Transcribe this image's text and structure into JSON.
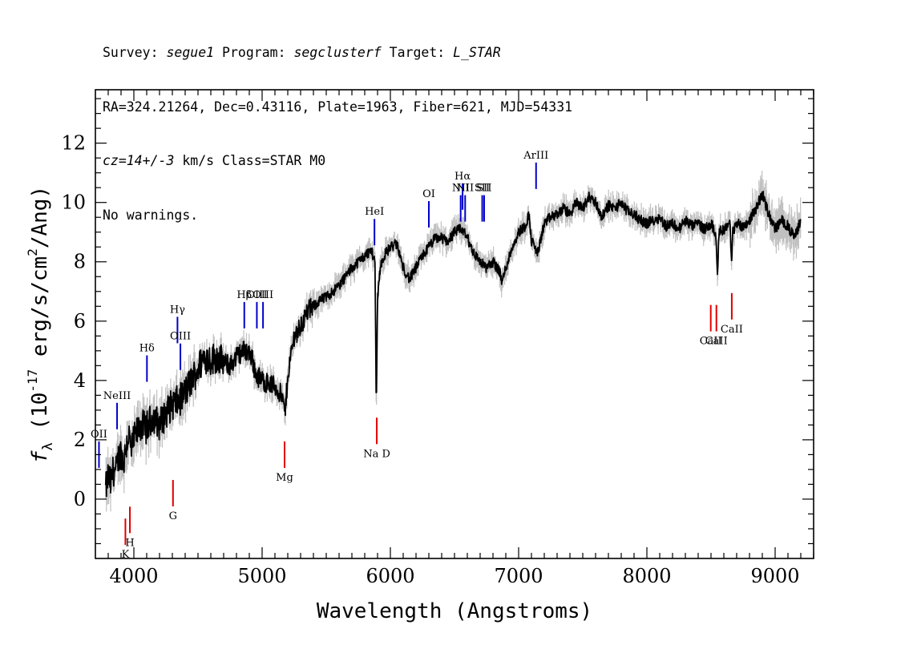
{
  "header": {
    "line1": [
      {
        "t": "Survey: ",
        "i": false
      },
      {
        "t": "segue1",
        "i": true
      },
      {
        "t": " Program: ",
        "i": false
      },
      {
        "t": "segclusterf",
        "i": true
      },
      {
        "t": " Target: ",
        "i": false
      },
      {
        "t": "L_STAR",
        "i": true
      }
    ],
    "line2": [
      {
        "t": "RA=324.21264, Dec=0.43116, Plate=1963, Fiber=621, MJD=54331",
        "i": false
      }
    ],
    "line3": [
      {
        "t": "cz=14+/-3",
        "i": true
      },
      {
        "t": " km/s Class=STAR M0",
        "i": false
      }
    ],
    "line4": [
      {
        "t": "No warnings.",
        "i": false
      }
    ]
  },
  "chart_data": {
    "type": "line",
    "xlabel": "Wavelength (Angstroms)",
    "ylabel": "f_λ (10^-17 erg/s/cm^2/Ang)",
    "xlim": [
      3700,
      9300
    ],
    "ylim": [
      -2,
      13.8
    ],
    "x_ticks": [
      4000,
      5000,
      6000,
      7000,
      8000,
      9000
    ],
    "y_ticks": [
      0,
      2,
      4,
      6,
      8,
      10,
      12
    ],
    "colors": {
      "flux": "#000000",
      "error": "#c0c0c0",
      "emission": "#0000c8",
      "absorption": "#e00000"
    },
    "series": [
      {
        "x": [
          3780,
          3800,
          3820,
          3840,
          3860,
          3880,
          3900,
          3920,
          3940,
          3960,
          3980,
          4000,
          4050,
          4100,
          4150,
          4200,
          4250,
          4300,
          4350,
          4400,
          4450,
          4500,
          4550,
          4600,
          4650,
          4700,
          4750,
          4800,
          4850,
          4880,
          4920,
          4950,
          5000,
          5050,
          5100,
          5150,
          5180,
          5200,
          5250,
          5300,
          5350,
          5400,
          5450,
          5500,
          5550,
          5600,
          5650,
          5700,
          5750,
          5800,
          5850,
          5880,
          5890,
          5900,
          5920,
          5950,
          6000,
          6050,
          6100,
          6150,
          6200,
          6250,
          6300,
          6350,
          6400,
          6450,
          6500,
          6550,
          6560,
          6600,
          6650,
          6700,
          6750,
          6800,
          6850,
          6870,
          6900,
          6950,
          7000,
          7050,
          7080,
          7100,
          7150,
          7200,
          7250,
          7300,
          7350,
          7400,
          7450,
          7500,
          7550,
          7600,
          7650,
          7700,
          7750,
          7800,
          7850,
          7900,
          7950,
          8000,
          8050,
          8100,
          8150,
          8200,
          8250,
          8300,
          8350,
          8400,
          8450,
          8500,
          8540,
          8550,
          8560,
          8600,
          8650,
          8660,
          8670,
          8700,
          8750,
          8800,
          8850,
          8900,
          8950,
          9000,
          9050,
          9100,
          9150,
          9200
        ],
        "y": [
          0.3,
          0.8,
          0.5,
          1.0,
          0.9,
          1.4,
          1.6,
          1.2,
          1.8,
          2.2,
          1.6,
          2.0,
          2.5,
          2.4,
          2.8,
          2.5,
          2.9,
          3.2,
          3.3,
          3.6,
          4.0,
          4.4,
          4.8,
          4.7,
          4.8,
          4.6,
          4.5,
          4.8,
          5.0,
          5.0,
          4.8,
          4.2,
          4.0,
          3.9,
          3.8,
          3.5,
          2.9,
          4.2,
          5.5,
          5.8,
          6.3,
          6.5,
          6.7,
          6.8,
          7.0,
          7.2,
          7.5,
          7.8,
          8.0,
          8.2,
          8.4,
          8.0,
          3.0,
          6.8,
          7.8,
          8.2,
          8.5,
          8.6,
          7.8,
          7.4,
          7.8,
          8.2,
          8.5,
          8.8,
          8.8,
          8.7,
          9.0,
          9.1,
          9.1,
          8.8,
          8.3,
          8.0,
          7.8,
          8.0,
          7.7,
          7.3,
          7.8,
          8.5,
          9.0,
          9.2,
          9.6,
          8.7,
          8.3,
          9.3,
          9.5,
          9.6,
          9.8,
          9.6,
          10.0,
          9.8,
          10.2,
          10.0,
          9.5,
          9.9,
          9.8,
          10.0,
          9.7,
          9.6,
          9.4,
          9.3,
          9.4,
          9.5,
          9.2,
          9.3,
          9.1,
          9.4,
          9.2,
          9.3,
          9.1,
          9.3,
          8.9,
          7.4,
          9.0,
          9.1,
          9.3,
          7.8,
          9.0,
          9.3,
          9.2,
          9.4,
          9.8,
          10.3,
          9.6,
          9.1,
          9.4,
          9.2,
          8.8,
          9.4
        ]
      }
    ],
    "line_labels": [
      {
        "label": "OII",
        "x": 3728,
        "y": 1.5,
        "kind": "emission"
      },
      {
        "label": "NeIII",
        "x": 3869,
        "y": 2.8,
        "kind": "emission"
      },
      {
        "label": "Hδ",
        "x": 4102,
        "y": 4.4,
        "kind": "emission"
      },
      {
        "label": "Hγ",
        "x": 4340,
        "y": 5.7,
        "kind": "emission"
      },
      {
        "label": "OIII",
        "x": 4363,
        "y": 4.8,
        "kind": "emission"
      },
      {
        "label": "Hβ",
        "x": 4861,
        "y": 6.2,
        "kind": "emission"
      },
      {
        "label": "OIII",
        "x": 4959,
        "y": 6.2,
        "kind": "emission"
      },
      {
        "label": "OIII",
        "x": 5007,
        "y": 6.2,
        "kind": "emission"
      },
      {
        "label": "HeI",
        "x": 5876,
        "y": 9.0,
        "kind": "emission"
      },
      {
        "label": "OI",
        "x": 6300,
        "y": 9.6,
        "kind": "emission"
      },
      {
        "label": "NII",
        "x": 6548,
        "y": 9.8,
        "kind": "emission"
      },
      {
        "label": "Hα",
        "x": 6563,
        "y": 10.2,
        "kind": "emission"
      },
      {
        "label": "NII",
        "x": 6583,
        "y": 9.8,
        "kind": "emission"
      },
      {
        "label": "SII",
        "x": 6716,
        "y": 9.8,
        "kind": "emission"
      },
      {
        "label": "SII",
        "x": 6731,
        "y": 9.8,
        "kind": "emission"
      },
      {
        "label": "ArIII",
        "x": 7136,
        "y": 10.9,
        "kind": "emission"
      },
      {
        "label": "K",
        "x": 3934,
        "y": -1.1,
        "kind": "absorption"
      },
      {
        "label": "H",
        "x": 3969,
        "y": -0.7,
        "kind": "absorption"
      },
      {
        "label": "G",
        "x": 4305,
        "y": 0.2,
        "kind": "absorption"
      },
      {
        "label": "Mg",
        "x": 5175,
        "y": 1.5,
        "kind": "absorption"
      },
      {
        "label": "Na D",
        "x": 5894,
        "y": 2.3,
        "kind": "absorption"
      },
      {
        "label": "CaII",
        "x": 8498,
        "y": 6.1,
        "kind": "absorption"
      },
      {
        "label": "CaII",
        "x": 8542,
        "y": 6.1,
        "kind": "absorption"
      },
      {
        "label": "CaII",
        "x": 8662,
        "y": 6.5,
        "kind": "absorption"
      }
    ]
  }
}
